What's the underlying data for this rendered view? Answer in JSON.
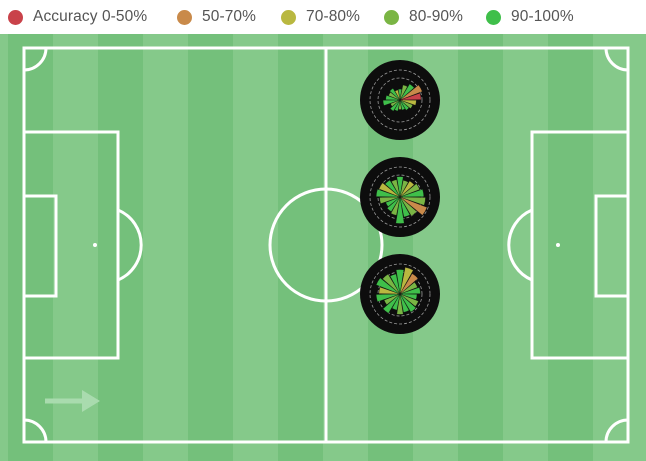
{
  "legend": [
    {
      "label": "Accuracy 0-50%",
      "color": "#c9424a"
    },
    {
      "label": "50-70%",
      "color": "#c98a4a"
    },
    {
      "label": "70-80%",
      "color": "#b9b840"
    },
    {
      "label": "80-90%",
      "color": "#7ab544"
    },
    {
      "label": "90-100%",
      "color": "#3fbf4a"
    }
  ],
  "colors": {
    "pitch_dark": "#74c07b",
    "pitch_light": "#85c98a",
    "lines": "#ffffff",
    "badge": "#0d0d0d",
    "direction_arrow": "#a9dbae"
  },
  "chart_data": {
    "type": "radial-pass-sonar",
    "description_free": true,
    "categories_legend": [
      "Accuracy 0-50%",
      "50-70%",
      "70-80%",
      "80-90%",
      "90-100%"
    ],
    "attack_direction": "left-to-right",
    "sonars": [
      {
        "id": "top",
        "wedges": [
          {
            "angle": 0,
            "length": 0.32,
            "accuracy": "90-100%"
          },
          {
            "angle": 20,
            "length": 0.45,
            "accuracy": "80-90%"
          },
          {
            "angle": 40,
            "length": 0.55,
            "accuracy": "90-100%"
          },
          {
            "angle": 60,
            "length": 0.7,
            "accuracy": "50-70%"
          },
          {
            "angle": 80,
            "length": 0.62,
            "accuracy": "Accuracy 0-50%"
          },
          {
            "angle": 100,
            "length": 0.48,
            "accuracy": "70-80%"
          },
          {
            "angle": 120,
            "length": 0.4,
            "accuracy": "80-90%"
          },
          {
            "angle": 140,
            "length": 0.35,
            "accuracy": "90-100%"
          },
          {
            "angle": 160,
            "length": 0.3,
            "accuracy": "90-100%"
          },
          {
            "angle": 180,
            "length": 0.28,
            "accuracy": "80-90%"
          },
          {
            "angle": 200,
            "length": 0.33,
            "accuracy": "90-100%"
          },
          {
            "angle": 220,
            "length": 0.38,
            "accuracy": "90-100%"
          },
          {
            "angle": 240,
            "length": 0.3,
            "accuracy": "80-90%"
          },
          {
            "angle": 260,
            "length": 0.5,
            "accuracy": "90-100%"
          },
          {
            "angle": 280,
            "length": 0.42,
            "accuracy": "90-100%"
          },
          {
            "angle": 300,
            "length": 0.36,
            "accuracy": "80-90%"
          },
          {
            "angle": 320,
            "length": 0.4,
            "accuracy": "90-100%"
          },
          {
            "angle": 340,
            "length": 0.3,
            "accuracy": "70-80%"
          }
        ]
      },
      {
        "id": "middle",
        "wedges": [
          {
            "angle": 0,
            "length": 0.6,
            "accuracy": "90-100%"
          },
          {
            "angle": 20,
            "length": 0.5,
            "accuracy": "80-90%"
          },
          {
            "angle": 40,
            "length": 0.55,
            "accuracy": "70-80%"
          },
          {
            "angle": 60,
            "length": 0.62,
            "accuracy": "80-90%"
          },
          {
            "angle": 80,
            "length": 0.7,
            "accuracy": "90-100%"
          },
          {
            "angle": 100,
            "length": 0.75,
            "accuracy": "80-90%"
          },
          {
            "angle": 120,
            "length": 0.85,
            "accuracy": "50-70%"
          },
          {
            "angle": 140,
            "length": 0.65,
            "accuracy": "80-90%"
          },
          {
            "angle": 160,
            "length": 0.6,
            "accuracy": "90-100%"
          },
          {
            "angle": 180,
            "length": 0.78,
            "accuracy": "90-100%"
          },
          {
            "angle": 200,
            "length": 0.55,
            "accuracy": "80-90%"
          },
          {
            "angle": 220,
            "length": 0.5,
            "accuracy": "90-100%"
          },
          {
            "angle": 240,
            "length": 0.45,
            "accuracy": "90-100%"
          },
          {
            "angle": 260,
            "length": 0.6,
            "accuracy": "80-90%"
          },
          {
            "angle": 280,
            "length": 0.7,
            "accuracy": "90-100%"
          },
          {
            "angle": 300,
            "length": 0.66,
            "accuracy": "70-80%"
          },
          {
            "angle": 320,
            "length": 0.58,
            "accuracy": "90-100%"
          },
          {
            "angle": 340,
            "length": 0.52,
            "accuracy": "80-90%"
          }
        ]
      },
      {
        "id": "bottom",
        "wedges": [
          {
            "angle": 0,
            "length": 0.72,
            "accuracy": "90-100%"
          },
          {
            "angle": 20,
            "length": 0.8,
            "accuracy": "70-80%"
          },
          {
            "angle": 40,
            "length": 0.7,
            "accuracy": "50-70%"
          },
          {
            "angle": 60,
            "length": 0.55,
            "accuracy": "80-90%"
          },
          {
            "angle": 80,
            "length": 0.6,
            "accuracy": "90-100%"
          },
          {
            "angle": 100,
            "length": 0.5,
            "accuracy": "90-100%"
          },
          {
            "angle": 120,
            "length": 0.58,
            "accuracy": "80-90%"
          },
          {
            "angle": 140,
            "length": 0.62,
            "accuracy": "90-100%"
          },
          {
            "angle": 160,
            "length": 0.55,
            "accuracy": "90-100%"
          },
          {
            "angle": 180,
            "length": 0.6,
            "accuracy": "80-90%"
          },
          {
            "angle": 200,
            "length": 0.48,
            "accuracy": "90-100%"
          },
          {
            "angle": 220,
            "length": 0.66,
            "accuracy": "90-100%"
          },
          {
            "angle": 240,
            "length": 0.5,
            "accuracy": "80-90%"
          },
          {
            "angle": 260,
            "length": 0.7,
            "accuracy": "90-100%"
          },
          {
            "angle": 280,
            "length": 0.62,
            "accuracy": "70-80%"
          },
          {
            "angle": 300,
            "length": 0.75,
            "accuracy": "90-100%"
          },
          {
            "angle": 320,
            "length": 0.68,
            "accuracy": "80-90%"
          },
          {
            "angle": 340,
            "length": 0.6,
            "accuracy": "90-100%"
          }
        ]
      }
    ]
  }
}
